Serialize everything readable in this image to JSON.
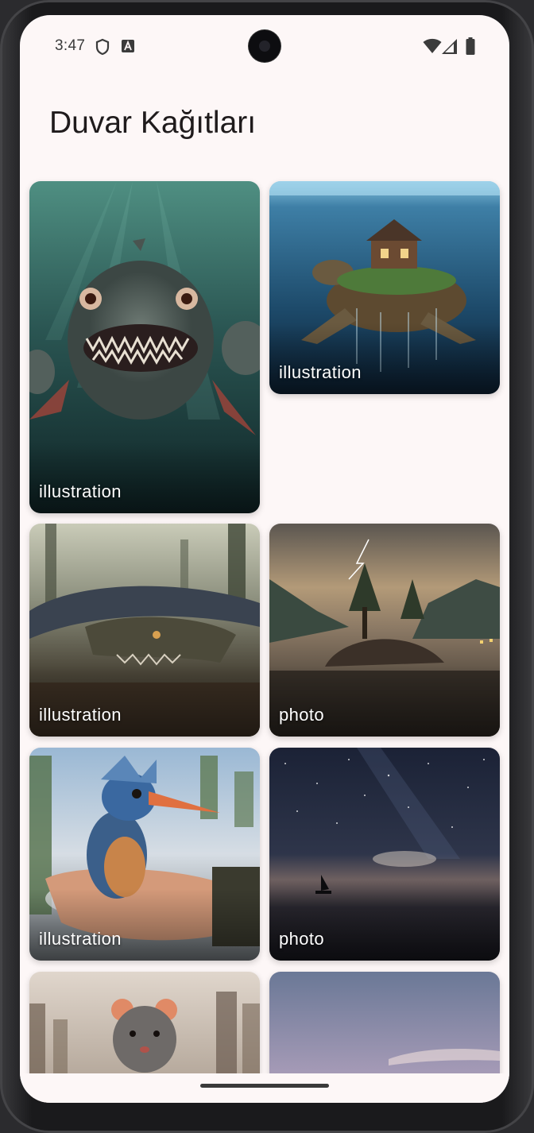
{
  "status_bar": {
    "time": "3:47",
    "icons_left": [
      "shield-icon",
      "a-badge-icon"
    ],
    "icons_right": [
      "wifi-icon",
      "signal-icon",
      "battery-icon"
    ]
  },
  "app": {
    "title": "Duvar Kağıtları"
  },
  "wallpapers": [
    {
      "label": "illustration",
      "subject": "piranha fish underwater"
    },
    {
      "label": "illustration",
      "subject": "turtle carrying house island"
    },
    {
      "label": "illustration",
      "subject": "giant snake in swamp"
    },
    {
      "label": "photo",
      "subject": "lake island with lightning"
    },
    {
      "label": "illustration",
      "subject": "kingfisher bird on hand"
    },
    {
      "label": "photo",
      "subject": "starry night sailboat"
    },
    {
      "label": "",
      "subject": "rat in city"
    },
    {
      "label": "",
      "subject": "pastel sky"
    }
  ],
  "colors": {
    "background": "#fdf7f7",
    "title": "#1f1b1c",
    "label": "#ffffff"
  }
}
